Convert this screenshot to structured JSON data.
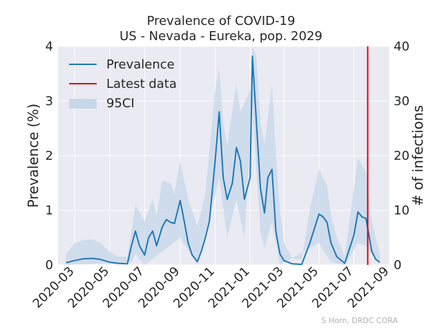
{
  "chart_data": {
    "type": "line",
    "title": "Prevalence of COVID-19",
    "subtitle": "US - Nevada - Eureka, pop. 2029",
    "ylabel": "Prevalence (%)",
    "y2label": "# of infections",
    "xlabel": "",
    "ylim": [
      0,
      4
    ],
    "y2lim": [
      0,
      40
    ],
    "yticks": [
      "0",
      "1",
      "2",
      "3",
      "4"
    ],
    "y2ticks": [
      "0",
      "10",
      "20",
      "30",
      "40"
    ],
    "xlim": [
      "2020-02-01",
      "2021-09-01"
    ],
    "xticks": [
      "2020-03",
      "2020-05",
      "2020-07",
      "2020-09",
      "2020-11",
      "2021-01",
      "2021-03",
      "2021-05",
      "2021-07",
      "2021-09"
    ],
    "grid": true,
    "legend_position": "top-left",
    "colors": {
      "prevalence": "#1f77b4",
      "latest": "#e00000",
      "ci": "#c6d7ea",
      "background": "#e9eaf2"
    },
    "legend": [
      {
        "label": "Prevalence",
        "kind": "line",
        "color": "#1f77b4"
      },
      {
        "label": "Latest data",
        "kind": "line",
        "color": "#e00000"
      },
      {
        "label": "95CI",
        "kind": "patch",
        "color": "#c6d7ea"
      }
    ],
    "latest_data_date": "2021-07-25",
    "series": [
      {
        "name": "Prevalence",
        "points": [
          [
            "2020-02-15",
            0.04
          ],
          [
            "2020-03-01",
            0.08
          ],
          [
            "2020-03-15",
            0.11
          ],
          [
            "2020-04-01",
            0.12
          ],
          [
            "2020-04-15",
            0.1
          ],
          [
            "2020-05-01",
            0.05
          ],
          [
            "2020-05-15",
            0.03
          ],
          [
            "2020-06-01",
            0.02
          ],
          [
            "2020-06-08",
            0.35
          ],
          [
            "2020-06-15",
            0.62
          ],
          [
            "2020-06-22",
            0.35
          ],
          [
            "2020-07-01",
            0.18
          ],
          [
            "2020-07-08",
            0.5
          ],
          [
            "2020-07-15",
            0.62
          ],
          [
            "2020-07-22",
            0.35
          ],
          [
            "2020-08-01",
            0.7
          ],
          [
            "2020-08-08",
            0.83
          ],
          [
            "2020-08-15",
            0.78
          ],
          [
            "2020-08-22",
            0.76
          ],
          [
            "2020-09-01",
            1.18
          ],
          [
            "2020-09-08",
            0.8
          ],
          [
            "2020-09-15",
            0.4
          ],
          [
            "2020-09-22",
            0.18
          ],
          [
            "2020-10-01",
            0.06
          ],
          [
            "2020-10-08",
            0.25
          ],
          [
            "2020-10-15",
            0.5
          ],
          [
            "2020-10-22",
            0.8
          ],
          [
            "2020-11-01",
            1.9
          ],
          [
            "2020-11-08",
            2.8
          ],
          [
            "2020-11-15",
            1.6
          ],
          [
            "2020-11-22",
            1.2
          ],
          [
            "2020-12-01",
            1.5
          ],
          [
            "2020-12-08",
            2.15
          ],
          [
            "2020-12-15",
            1.9
          ],
          [
            "2020-12-22",
            1.2
          ],
          [
            "2021-01-01",
            1.6
          ],
          [
            "2021-01-05",
            3.82
          ],
          [
            "2021-01-12",
            2.6
          ],
          [
            "2021-01-19",
            1.4
          ],
          [
            "2021-01-26",
            0.95
          ],
          [
            "2021-02-01",
            1.6
          ],
          [
            "2021-02-08",
            1.75
          ],
          [
            "2021-02-15",
            0.6
          ],
          [
            "2021-02-22",
            0.2
          ],
          [
            "2021-03-01",
            0.08
          ],
          [
            "2021-03-15",
            0.02
          ],
          [
            "2021-04-01",
            0.01
          ],
          [
            "2021-04-15",
            0.4
          ],
          [
            "2021-05-01",
            0.93
          ],
          [
            "2021-05-08",
            0.88
          ],
          [
            "2021-05-15",
            0.78
          ],
          [
            "2021-05-22",
            0.4
          ],
          [
            "2021-06-01",
            0.15
          ],
          [
            "2021-06-15",
            0.03
          ],
          [
            "2021-07-01",
            0.55
          ],
          [
            "2021-07-08",
            0.97
          ],
          [
            "2021-07-15",
            0.88
          ],
          [
            "2021-07-22",
            0.85
          ],
          [
            "2021-08-01",
            0.25
          ],
          [
            "2021-08-08",
            0.1
          ],
          [
            "2021-08-15",
            0.05
          ]
        ],
        "ci_upper": [
          [
            "2020-02-15",
            0.2
          ],
          [
            "2020-03-01",
            0.4
          ],
          [
            "2020-03-15",
            0.45
          ],
          [
            "2020-04-01",
            0.47
          ],
          [
            "2020-04-15",
            0.4
          ],
          [
            "2020-05-01",
            0.24
          ],
          [
            "2020-05-15",
            0.15
          ],
          [
            "2020-06-01",
            0.15
          ],
          [
            "2020-06-15",
            1.1
          ],
          [
            "2020-07-01",
            0.8
          ],
          [
            "2020-07-15",
            1.2
          ],
          [
            "2020-07-22",
            0.9
          ],
          [
            "2020-08-01",
            1.55
          ],
          [
            "2020-08-15",
            1.5
          ],
          [
            "2020-08-22",
            1.3
          ],
          [
            "2020-09-01",
            1.9
          ],
          [
            "2020-09-15",
            1.2
          ],
          [
            "2020-10-01",
            0.7
          ],
          [
            "2020-10-15",
            1.3
          ],
          [
            "2020-11-01",
            3.2
          ],
          [
            "2020-11-08",
            3.6
          ],
          [
            "2020-11-15",
            2.6
          ],
          [
            "2020-11-22",
            2.2
          ],
          [
            "2020-12-08",
            3.3
          ],
          [
            "2020-12-15",
            2.8
          ],
          [
            "2021-01-01",
            3.2
          ],
          [
            "2021-01-05",
            4.0
          ],
          [
            "2021-01-12",
            3.8
          ],
          [
            "2021-01-19",
            2.6
          ],
          [
            "2021-01-26",
            2.2
          ],
          [
            "2021-02-08",
            3.3
          ],
          [
            "2021-02-15",
            2.0
          ],
          [
            "2021-02-22",
            1.0
          ],
          [
            "2021-03-01",
            0.4
          ],
          [
            "2021-03-15",
            0.12
          ],
          [
            "2021-04-01",
            0.1
          ],
          [
            "2021-04-15",
            1.0
          ],
          [
            "2021-05-01",
            1.75
          ],
          [
            "2021-05-15",
            1.45
          ],
          [
            "2021-05-22",
            0.9
          ],
          [
            "2021-06-01",
            0.5
          ],
          [
            "2021-06-15",
            0.15
          ],
          [
            "2021-07-01",
            1.4
          ],
          [
            "2021-07-08",
            1.95
          ],
          [
            "2021-07-22",
            1.7
          ],
          [
            "2021-08-01",
            0.8
          ],
          [
            "2021-08-15",
            0.2
          ]
        ],
        "ci_lower": [
          [
            "2020-02-15",
            0.0
          ],
          [
            "2020-06-08",
            0.05
          ],
          [
            "2020-06-15",
            0.2
          ],
          [
            "2020-07-01",
            0.0
          ],
          [
            "2020-08-08",
            0.3
          ],
          [
            "2020-09-01",
            0.5
          ],
          [
            "2020-10-01",
            0.0
          ],
          [
            "2020-11-08",
            1.6
          ],
          [
            "2020-11-22",
            0.5
          ],
          [
            "2020-12-08",
            1.2
          ],
          [
            "2020-12-22",
            0.5
          ],
          [
            "2021-01-05",
            2.9
          ],
          [
            "2021-01-19",
            0.6
          ],
          [
            "2021-01-26",
            0.3
          ],
          [
            "2021-02-08",
            0.8
          ],
          [
            "2021-02-22",
            0.0
          ],
          [
            "2021-05-01",
            0.4
          ],
          [
            "2021-05-22",
            0.05
          ],
          [
            "2021-06-15",
            0.0
          ],
          [
            "2021-07-08",
            0.4
          ],
          [
            "2021-07-22",
            0.35
          ],
          [
            "2021-08-15",
            0.0
          ]
        ]
      }
    ],
    "credit": "S Horn, DRDC CORA"
  }
}
